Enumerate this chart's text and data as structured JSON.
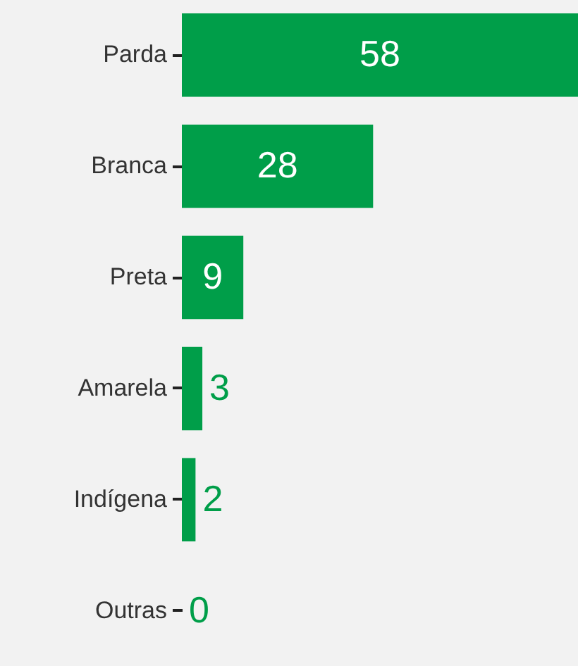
{
  "chart_data": {
    "type": "bar",
    "orientation": "horizontal",
    "categories": [
      "Parda",
      "Branca",
      "Preta",
      "Amarela",
      "Indígena",
      "Outras"
    ],
    "values": [
      58,
      28,
      9,
      3,
      2,
      0
    ],
    "color": "#009e49",
    "data_labels": true,
    "grid": false
  }
}
